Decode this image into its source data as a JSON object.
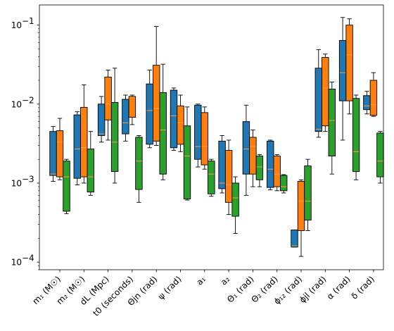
{
  "chart_data": {
    "type": "box",
    "yscale": "log",
    "ylim": [
      8e-05,
      0.18
    ],
    "yticks": [
      {
        "value": 0.0001,
        "label": "10",
        "exp": "−4"
      },
      {
        "value": 0.001,
        "label": "10",
        "exp": "−3"
      },
      {
        "value": 0.01,
        "label": "10",
        "exp": "−2"
      },
      {
        "value": 0.1,
        "label": "10",
        "exp": "−1"
      }
    ],
    "series_colors": [
      "#1f77b4",
      "#ff7f0e",
      "#2ca02c"
    ],
    "median_color": "#ff9f40",
    "categories": [
      {
        "label": "m₁ (M☉)",
        "boxes": [
          {
            "wlo": 0.00105,
            "q1": 0.00125,
            "med": 0.0013,
            "q3": 0.0045,
            "whi": 0.0052
          },
          {
            "wlo": 0.0011,
            "q1": 0.0012,
            "med": 0.0033,
            "q3": 0.0046,
            "whi": 0.0066
          },
          {
            "wlo": 0.00041,
            "q1": 0.00044,
            "med": 0.0012,
            "q3": 0.0019,
            "whi": 0.002
          }
        ]
      },
      {
        "label": "m₂ (M☉)",
        "boxes": [
          {
            "wlo": 0.00095,
            "q1": 0.00115,
            "med": 0.0027,
            "q3": 0.0073,
            "whi": 0.008
          },
          {
            "wlo": 0.001,
            "q1": 0.0012,
            "med": 0.0028,
            "q3": 0.0091,
            "whi": 0.0175
          },
          {
            "wlo": 0.0007,
            "q1": 0.00077,
            "med": 0.0012,
            "q3": 0.0027,
            "whi": 0.0045
          }
        ]
      },
      {
        "label": "dL (Mpc)",
        "boxes": [
          {
            "wlo": 0.0033,
            "q1": 0.004,
            "med": 0.0042,
            "q3": 0.01,
            "whi": 0.0125
          },
          {
            "wlo": 0.0035,
            "q1": 0.0063,
            "med": 0.01,
            "q3": 0.022,
            "whi": 0.027
          },
          {
            "wlo": 0.001,
            "q1": 0.0014,
            "med": 0.0033,
            "q3": 0.0105,
            "whi": 0.0285
          }
        ]
      },
      {
        "label": "t0 (seconds)",
        "boxes": [
          {
            "wlo": 0.0034,
            "q1": 0.0042,
            "med": 0.0058,
            "q3": 0.0115,
            "whi": 0.013
          },
          {
            "wlo": 0.0055,
            "q1": 0.0068,
            "med": 0.012,
            "q3": 0.0125,
            "whi": 0.013
          },
          {
            "wlo": 0.00057,
            "q1": 0.00083,
            "med": 0.0019,
            "q3": 0.0038,
            "whi": 0.004
          }
        ]
      },
      {
        "label": "Θjn (rad)",
        "boxes": [
          {
            "wlo": 0.0028,
            "q1": 0.0031,
            "med": 0.0083,
            "q3": 0.018,
            "whi": 0.027
          },
          {
            "wlo": 0.003,
            "q1": 0.0034,
            "med": 0.0088,
            "q3": 0.031,
            "whi": 0.096
          },
          {
            "wlo": 0.0011,
            "q1": 0.0013,
            "med": 0.0047,
            "q3": 0.014,
            "whi": 0.032
          }
        ]
      },
      {
        "label": "ψ (rad)",
        "boxes": [
          {
            "wlo": 0.0026,
            "q1": 0.0028,
            "med": 0.0071,
            "q3": 0.015,
            "whi": 0.016
          },
          {
            "wlo": 0.0025,
            "q1": 0.0031,
            "med": 0.0058,
            "q3": 0.0095,
            "whi": 0.013
          },
          {
            "wlo": 0.00061,
            "q1": 0.00063,
            "med": 0.0022,
            "q3": 0.0053,
            "whi": 0.0092
          }
        ]
      },
      {
        "label": "a₁",
        "boxes": [
          {
            "wlo": 0.0016,
            "q1": 0.002,
            "med": 0.0029,
            "q3": 0.0097,
            "whi": 0.01
          },
          {
            "wlo": 0.0015,
            "q1": 0.0017,
            "med": 0.0029,
            "q3": 0.0078,
            "whi": 0.0092
          },
          {
            "wlo": 0.00068,
            "q1": 0.00073,
            "med": 0.0013,
            "q3": 0.0019,
            "whi": 0.002
          }
        ]
      },
      {
        "label": "a₂",
        "boxes": [
          {
            "wlo": 0.00075,
            "q1": 0.00085,
            "med": 0.001,
            "q3": 0.0034,
            "whi": 0.004
          },
          {
            "wlo": 0.0004,
            "q1": 0.00057,
            "med": 0.00095,
            "q3": 0.0026,
            "whi": 0.0035
          },
          {
            "wlo": 0.00023,
            "q1": 0.00038,
            "med": 0.00065,
            "q3": 0.001,
            "whi": 0.0012
          }
        ]
      },
      {
        "label": "Θ₁ (rad)",
        "boxes": [
          {
            "wlo": 0.0007,
            "q1": 0.0013,
            "med": 0.0027,
            "q3": 0.006,
            "whi": 0.0097
          },
          {
            "wlo": 0.0009,
            "q1": 0.0013,
            "med": 0.0029,
            "q3": 0.0038,
            "whi": 0.0047
          },
          {
            "wlo": 0.0009,
            "q1": 0.0011,
            "med": 0.0016,
            "q3": 0.0022,
            "whi": 0.0023
          }
        ]
      },
      {
        "label": "Θ₂ (rad)",
        "boxes": [
          {
            "wlo": 0.00082,
            "q1": 0.00088,
            "med": 0.0015,
            "q3": 0.0034,
            "whi": 0.0035
          },
          {
            "wlo": 0.0008,
            "q1": 0.0009,
            "med": 0.0013,
            "q3": 0.0022,
            "whi": 0.0023
          },
          {
            "wlo": 0.00075,
            "q1": 0.0008,
            "med": 0.0009,
            "q3": 0.00125,
            "whi": 0.00128
          }
        ]
      },
      {
        "label": "ϕ₁₂ (rad)",
        "boxes": [
          {
            "wlo": 0.000155,
            "q1": 0.000155,
            "med": 0.00016,
            "q3": 0.000255,
            "whi": 0.000255
          },
          {
            "wlo": 0.000118,
            "q1": 0.00025,
            "med": 0.00059,
            "q3": 0.00105,
            "whi": 0.0011
          },
          {
            "wlo": 0.00025,
            "q1": 0.00034,
            "med": 0.00059,
            "q3": 0.00165,
            "whi": 0.002
          }
        ]
      },
      {
        "label": "ϕjl (rad)",
        "boxes": [
          {
            "wlo": 0.0038,
            "q1": 0.0045,
            "med": 0.0048,
            "q3": 0.0285,
            "whi": 0.049
          },
          {
            "wlo": 0.0045,
            "q1": 0.0053,
            "med": 0.016,
            "q3": 0.039,
            "whi": 0.043
          },
          {
            "wlo": 0.0013,
            "q1": 0.0022,
            "med": 0.0062,
            "q3": 0.0155,
            "whi": 0.019
          }
        ]
      },
      {
        "label": "α (rad)",
        "boxes": [
          {
            "wlo": 0.0035,
            "q1": 0.011,
            "med": 0.025,
            "q3": 0.064,
            "whi": 0.125
          },
          {
            "wlo": 0.0075,
            "q1": 0.011,
            "med": 0.042,
            "q3": 0.1,
            "whi": 0.12
          },
          {
            "wlo": 0.0011,
            "q1": 0.0014,
            "med": 0.0025,
            "q3": 0.0118,
            "whi": 0.013
          }
        ]
      },
      {
        "label": "δ (rad)",
        "boxes": [
          {
            "wlo": 0.0075,
            "q1": 0.0085,
            "med": 0.0095,
            "q3": 0.0128,
            "whi": 0.0145
          },
          {
            "wlo": 0.007,
            "q1": 0.0072,
            "med": 0.0098,
            "q3": 0.02,
            "whi": 0.025
          },
          {
            "wlo": 0.001,
            "q1": 0.0012,
            "med": 0.0019,
            "q3": 0.0043,
            "whi": 0.0045
          }
        ]
      }
    ]
  }
}
